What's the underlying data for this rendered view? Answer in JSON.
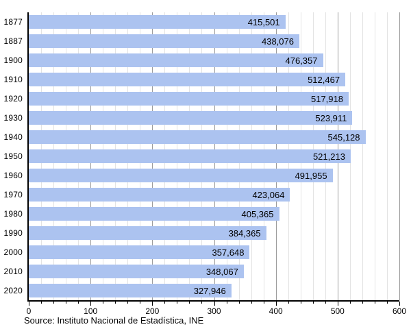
{
  "chart_data": {
    "type": "bar",
    "orientation": "horizontal",
    "categories": [
      "1877",
      "1887",
      "1900",
      "1910",
      "1920",
      "1930",
      "1940",
      "1950",
      "1960",
      "1970",
      "1980",
      "1990",
      "2000",
      "2010",
      "2020"
    ],
    "values": [
      415501,
      438076,
      476357,
      512467,
      517918,
      523911,
      545128,
      521213,
      491955,
      423064,
      405365,
      384365,
      357648,
      348067,
      327946
    ],
    "value_labels": [
      "415,501",
      "438,076",
      "476,357",
      "512,467",
      "517,918",
      "523,911",
      "545,128",
      "521,213",
      "491,955",
      "423,064",
      "405,365",
      "384,365",
      "357,648",
      "348,067",
      "327,946"
    ],
    "title": "",
    "xlabel": "",
    "ylabel": "",
    "xlim": [
      0,
      600
    ],
    "x_ticks": [
      0,
      100,
      200,
      300,
      400,
      500,
      600
    ],
    "x_tick_labels": [
      "0",
      "100",
      "200",
      "300",
      "400",
      "500",
      "600"
    ],
    "x_minor_step": 20,
    "x_axis_value_divisor": 1000,
    "grid": true,
    "legend": false,
    "bar_color": "#acc3f0",
    "major_grid_color": "#9b9b9b",
    "minor_grid_color": "#e3e3e3",
    "axis_color": "#000000",
    "label_color": "#000000"
  },
  "footer": {
    "source": "Source: Instituto Nacional de Estadística, INE"
  }
}
